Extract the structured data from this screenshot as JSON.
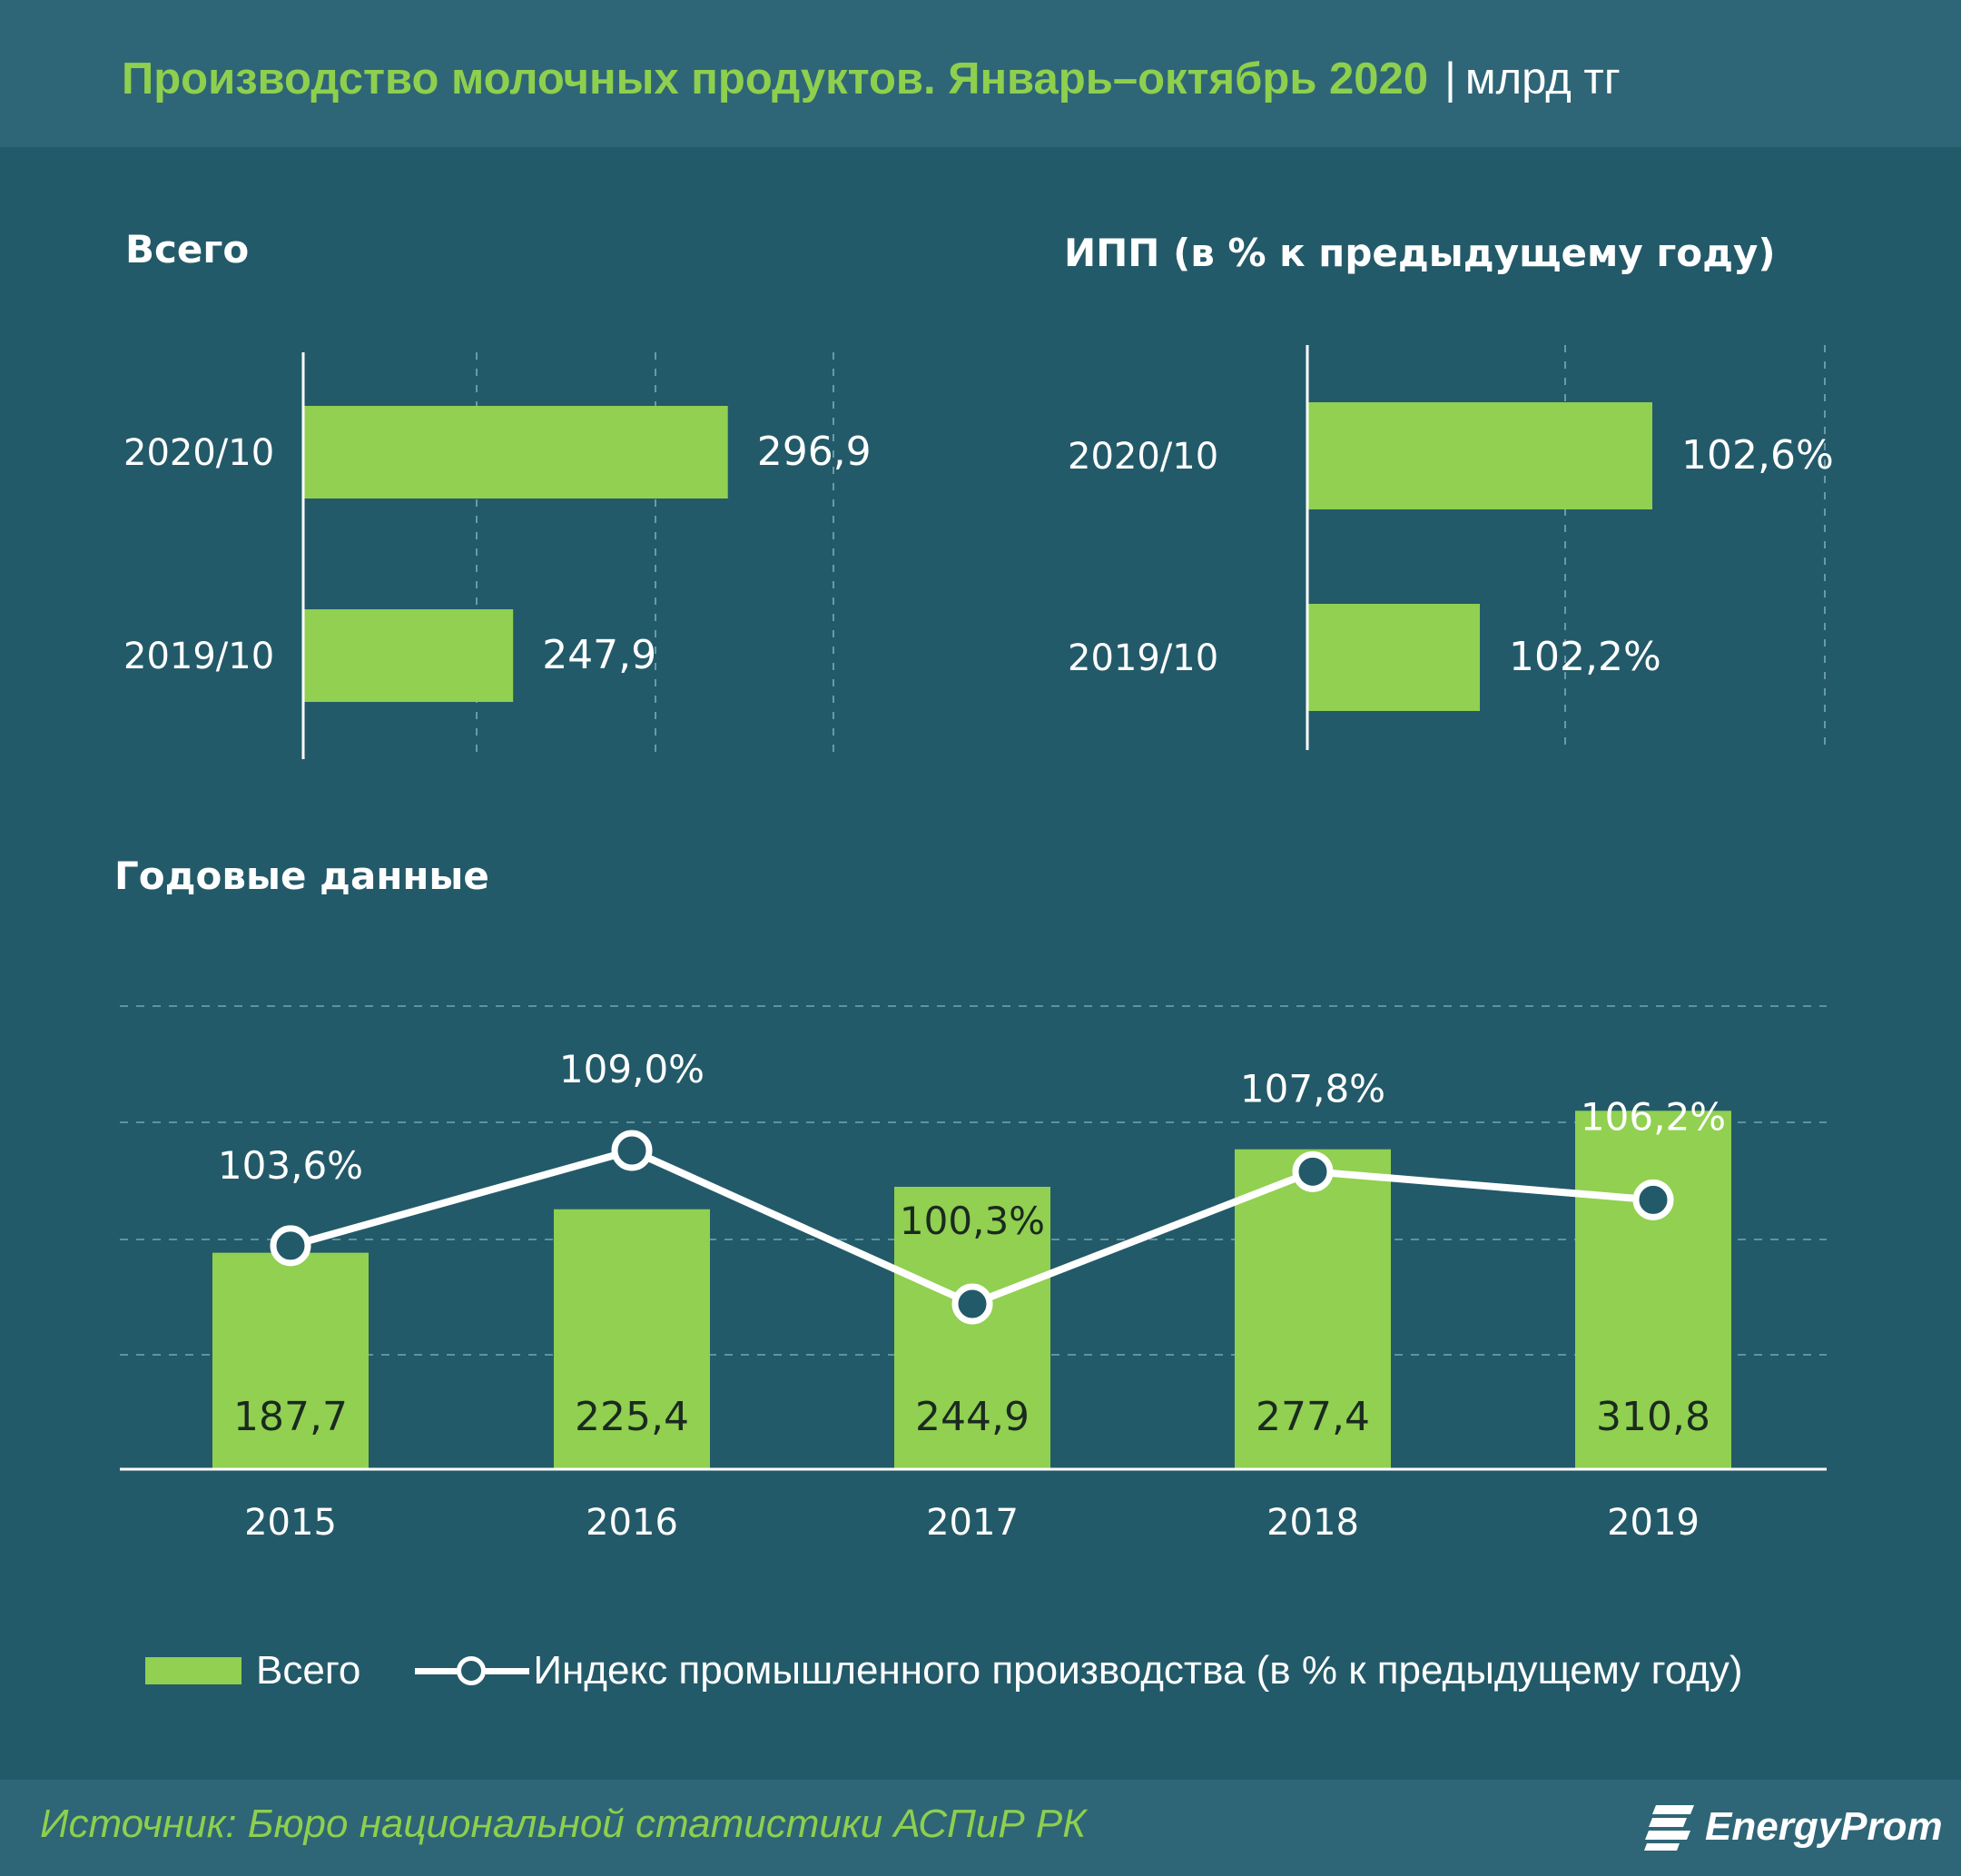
{
  "title": {
    "main": "Производство молочных продуктов. Январь–октябрь 2020",
    "separator": "|",
    "unit": "млрд тг"
  },
  "colors": {
    "bar": "#91d050",
    "line": "#ffffff",
    "background": "#235a69",
    "header": "#2e6677",
    "accent_text": "#8ecf4e"
  },
  "chart_data": [
    {
      "type": "bar",
      "orientation": "horizontal",
      "title": "Всего",
      "categories": [
        "2020/10",
        "2019/10"
      ],
      "values": [
        296.9,
        247.9
      ],
      "value_labels": [
        "296,9",
        "247,9"
      ],
      "xlim": [
        200,
        350
      ],
      "grid": true
    },
    {
      "type": "bar",
      "orientation": "horizontal",
      "title": "ИПП  (в % к предыдущему году)",
      "categories": [
        "2020/10",
        "2019/10"
      ],
      "values": [
        102.6,
        102.2
      ],
      "value_labels": [
        "102,6%",
        "102,2%"
      ],
      "xlim": [
        101.8,
        103.0
      ],
      "grid": true
    },
    {
      "type": "bar+line",
      "title": "Годовые данные",
      "categories": [
        "2015",
        "2016",
        "2017",
        "2018",
        "2019"
      ],
      "series": [
        {
          "name": "Всего",
          "type": "bar",
          "values": [
            187.7,
            225.4,
            244.9,
            277.4,
            310.8
          ],
          "labels": [
            "187,7",
            "225,4",
            "244,9",
            "277,4",
            "310,8"
          ]
        },
        {
          "name": "Индекс промышленного производства (в % к предыдущему году)",
          "type": "line",
          "values": [
            103.6,
            109.0,
            100.3,
            107.8,
            106.2
          ],
          "labels": [
            "103,6%",
            "109,0%",
            "100,3%",
            "107,8%",
            "106,2%"
          ]
        }
      ],
      "ylim_bar": [
        0,
        400
      ],
      "ylim_line": [
        84,
        114
      ],
      "grid": true,
      "legend_position": "bottom"
    }
  ],
  "legend": {
    "bar_label": "Всего",
    "line_label": "Индекс промышленного производства (в % к предыдущему году)"
  },
  "footer": {
    "source": "Источник: Бюро национальной  статистики АСПиР РК",
    "logo": "EnergyProm"
  }
}
